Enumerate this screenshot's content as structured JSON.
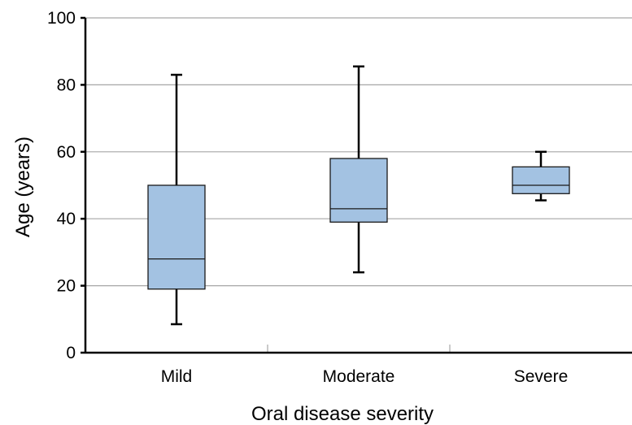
{
  "chart_data": {
    "type": "box",
    "xlabel": "Oral disease severity",
    "ylabel": "Age (years)",
    "ylim": [
      0,
      100
    ],
    "yticks": [
      0,
      20,
      40,
      60,
      80,
      100
    ],
    "grid": true,
    "categories": [
      "Mild",
      "Moderate",
      "Severe"
    ],
    "boxes": [
      {
        "category": "Mild",
        "min": 8.5,
        "q1": 19,
        "median": 28,
        "q3": 50,
        "max": 83
      },
      {
        "category": "Moderate",
        "min": 24,
        "q1": 39,
        "median": 43,
        "q3": 58,
        "max": 85.5
      },
      {
        "category": "Severe",
        "min": 45.5,
        "q1": 47.5,
        "median": 50,
        "q3": 55.5,
        "max": 60
      }
    ],
    "box_color": "#a3c2e2"
  }
}
